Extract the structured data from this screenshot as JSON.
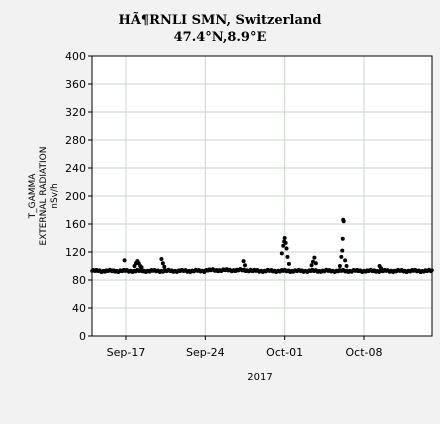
{
  "chart_data": {
    "type": "scatter",
    "title": "HÃ¶RNLI SMN, Switzerland",
    "subtitle": "47.4°N,8.9°E",
    "ylabel_lines": [
      "T_GAMMA",
      "EXTERNAL RADIATION",
      "nSv/h"
    ],
    "xlabel": "2017",
    "ylim": [
      0,
      400
    ],
    "yticks": [
      "0",
      "40",
      "80",
      "120",
      "160",
      "200",
      "240",
      "280",
      "320",
      "360",
      "400"
    ],
    "xlim": [
      "2017-09-14",
      "2017-10-14"
    ],
    "xticks": [
      {
        "date": "2017-09-17",
        "label": "Sep-17"
      },
      {
        "date": "2017-09-24",
        "label": "Sep-24"
      },
      {
        "date": "2017-10-01",
        "label": "Oct-01"
      },
      {
        "date": "2017-10-08",
        "label": "Oct-08"
      }
    ],
    "grid": true,
    "marker_color": "#000000",
    "plot_background": "#ffffff",
    "baseline": {
      "start": "2017-09-14",
      "end": "2017-10-14",
      "step_hours": 2,
      "level": 93,
      "segments": [
        {
          "from": "2017-09-24",
          "to": "2017-09-28",
          "level": 94
        }
      ]
    },
    "peaks": [
      {
        "x": "2017-09-16T21:00",
        "y": 108
      },
      {
        "x": "2017-09-17T18:00",
        "y": 100
      },
      {
        "x": "2017-09-17T21:00",
        "y": 104
      },
      {
        "x": "2017-09-18T00:00",
        "y": 107
      },
      {
        "x": "2017-09-18T03:00",
        "y": 104
      },
      {
        "x": "2017-09-18T06:00",
        "y": 100
      },
      {
        "x": "2017-09-18T09:00",
        "y": 98
      },
      {
        "x": "2017-09-20T03:00",
        "y": 110
      },
      {
        "x": "2017-09-20T06:00",
        "y": 104
      },
      {
        "x": "2017-09-20T09:00",
        "y": 99
      },
      {
        "x": "2017-09-27T09:00",
        "y": 107
      },
      {
        "x": "2017-09-27T12:00",
        "y": 101
      },
      {
        "x": "2017-09-30T18:00",
        "y": 118
      },
      {
        "x": "2017-09-30T21:00",
        "y": 129
      },
      {
        "x": "2017-09-30T23:00",
        "y": 135
      },
      {
        "x": "2017-10-01T00:00",
        "y": 140
      },
      {
        "x": "2017-10-01T02:00",
        "y": 133
      },
      {
        "x": "2017-10-01T04:00",
        "y": 125
      },
      {
        "x": "2017-10-01T06:00",
        "y": 113
      },
      {
        "x": "2017-10-01T09:00",
        "y": 103
      },
      {
        "x": "2017-10-03T09:00",
        "y": 101
      },
      {
        "x": "2017-10-03T12:00",
        "y": 106
      },
      {
        "x": "2017-10-03T15:00",
        "y": 112
      },
      {
        "x": "2017-10-03T18:00",
        "y": 104
      },
      {
        "x": "2017-10-05T21:00",
        "y": 100
      },
      {
        "x": "2017-10-06T00:00",
        "y": 113
      },
      {
        "x": "2017-10-06T02:00",
        "y": 122
      },
      {
        "x": "2017-10-06T03:00",
        "y": 139
      },
      {
        "x": "2017-10-06T04:00",
        "y": 166
      },
      {
        "x": "2017-10-06T05:00",
        "y": 164
      },
      {
        "x": "2017-10-06T08:00",
        "y": 108
      },
      {
        "x": "2017-10-06T11:00",
        "y": 100
      },
      {
        "x": "2017-10-09T09:00",
        "y": 100
      },
      {
        "x": "2017-10-09T12:00",
        "y": 97
      }
    ]
  }
}
